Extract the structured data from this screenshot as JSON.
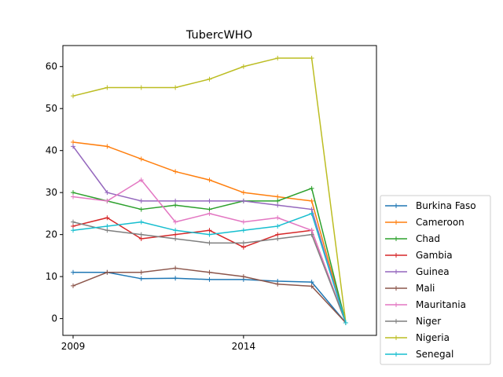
{
  "chart_data": {
    "type": "line",
    "title": "TubercWHO",
    "xlabel": "",
    "ylabel": "",
    "x": [
      2009,
      2010,
      2011,
      2012,
      2013,
      2014,
      2015,
      2016,
      2017
    ],
    "xticks": [
      2009,
      2014
    ],
    "xtick_labels": [
      "2009",
      "2014"
    ],
    "xlim": [
      2008.7,
      2017.9
    ],
    "yticks": [
      0,
      10,
      20,
      30,
      40,
      50,
      60
    ],
    "ytick_labels": [
      "0",
      "10",
      "20",
      "30",
      "40",
      "50",
      "60"
    ],
    "ylim": [
      -4,
      65
    ],
    "grid": false,
    "legend_position": "lower right, outside plot area",
    "series": [
      {
        "name": "Burkina Faso",
        "color": "#1f77b4",
        "values": [
          11,
          11,
          9.5,
          9.6,
          9.3,
          9.3,
          8.9,
          8.7,
          -1
        ]
      },
      {
        "name": "Cameroon",
        "color": "#ff7f0e",
        "values": [
          42,
          41,
          38,
          35,
          33,
          30,
          29,
          28,
          -1
        ]
      },
      {
        "name": "Chad",
        "color": "#2ca02c",
        "values": [
          30,
          28,
          26,
          27,
          26,
          28,
          28,
          31,
          -1
        ]
      },
      {
        "name": "Gambia",
        "color": "#d62728",
        "values": [
          22,
          24,
          19,
          20,
          21,
          17,
          20,
          21,
          -1
        ]
      },
      {
        "name": "Guinea",
        "color": "#9467bd",
        "values": [
          41,
          30,
          28,
          28,
          28,
          28,
          27,
          26,
          -1
        ]
      },
      {
        "name": "Mali",
        "color": "#8c564b",
        "values": [
          7.8,
          11,
          11,
          12,
          11,
          10,
          8.2,
          7.7,
          -1
        ]
      },
      {
        "name": "Mauritania",
        "color": "#e377c2",
        "values": [
          29,
          28,
          33,
          23,
          25,
          23,
          24,
          21,
          -1
        ]
      },
      {
        "name": "Niger",
        "color": "#7f7f7f",
        "values": [
          23,
          21,
          20,
          19,
          18,
          18,
          19,
          20,
          -1
        ]
      },
      {
        "name": "Nigeria",
        "color": "#bcbd22",
        "values": [
          53,
          55,
          55,
          55,
          57,
          60,
          62,
          62,
          -1
        ]
      },
      {
        "name": "Senegal",
        "color": "#17becf",
        "values": [
          21,
          22,
          23,
          21,
          20,
          21,
          22,
          25,
          -1
        ]
      }
    ]
  }
}
